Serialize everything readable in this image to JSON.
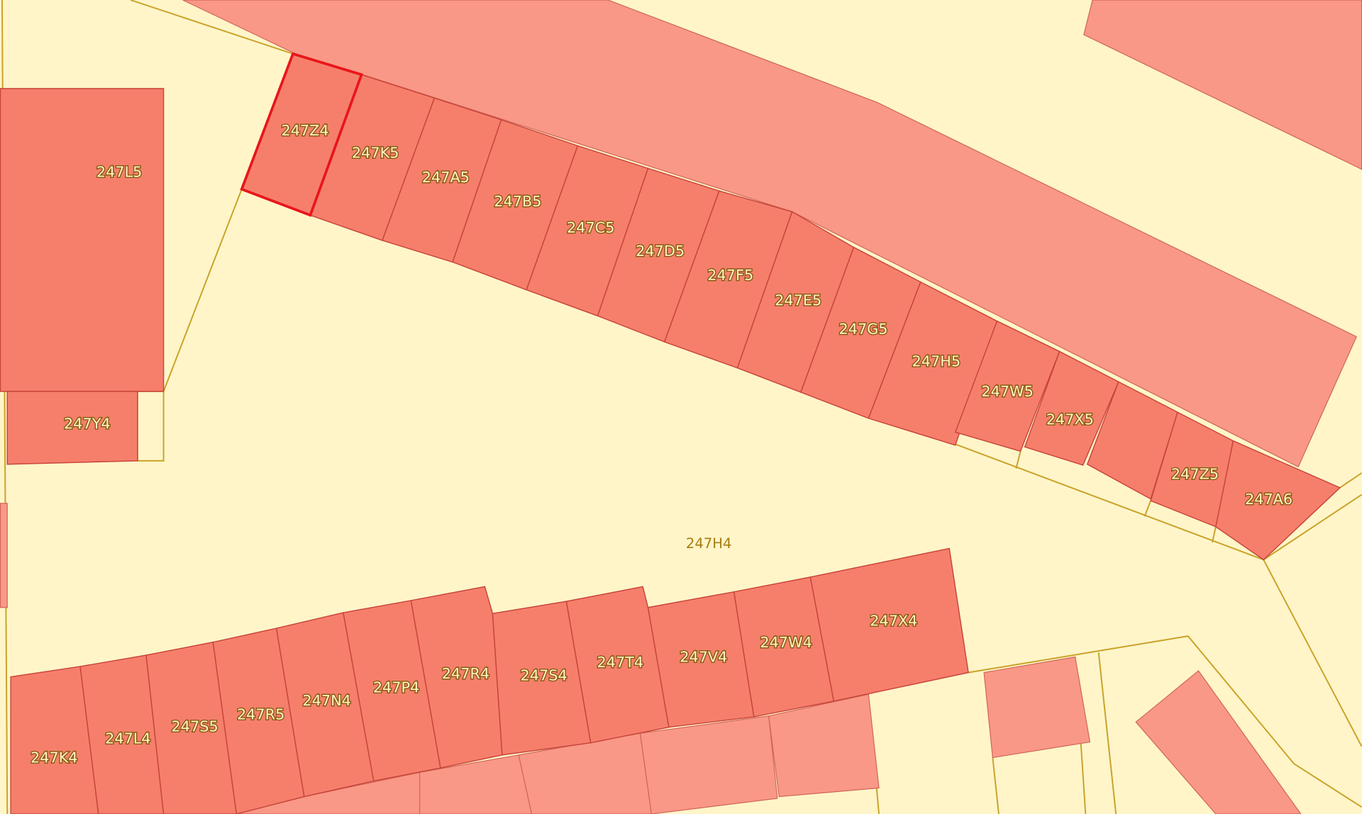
{
  "parcels": [
    "247Z4",
    "247K5",
    "247A5",
    "247B5",
    "247C5",
    "247D5",
    "247F5",
    "247E5",
    "247G5",
    "247H5",
    "247W5",
    "247X5",
    "247Z5",
    "247A6",
    "247L5",
    "247Y4",
    "247H4",
    "247K4",
    "247L4",
    "247S5",
    "247R5",
    "247N4",
    "247P4",
    "247R4",
    "247S4",
    "247T4",
    "247V4",
    "247W4",
    "247X4"
  ]
}
